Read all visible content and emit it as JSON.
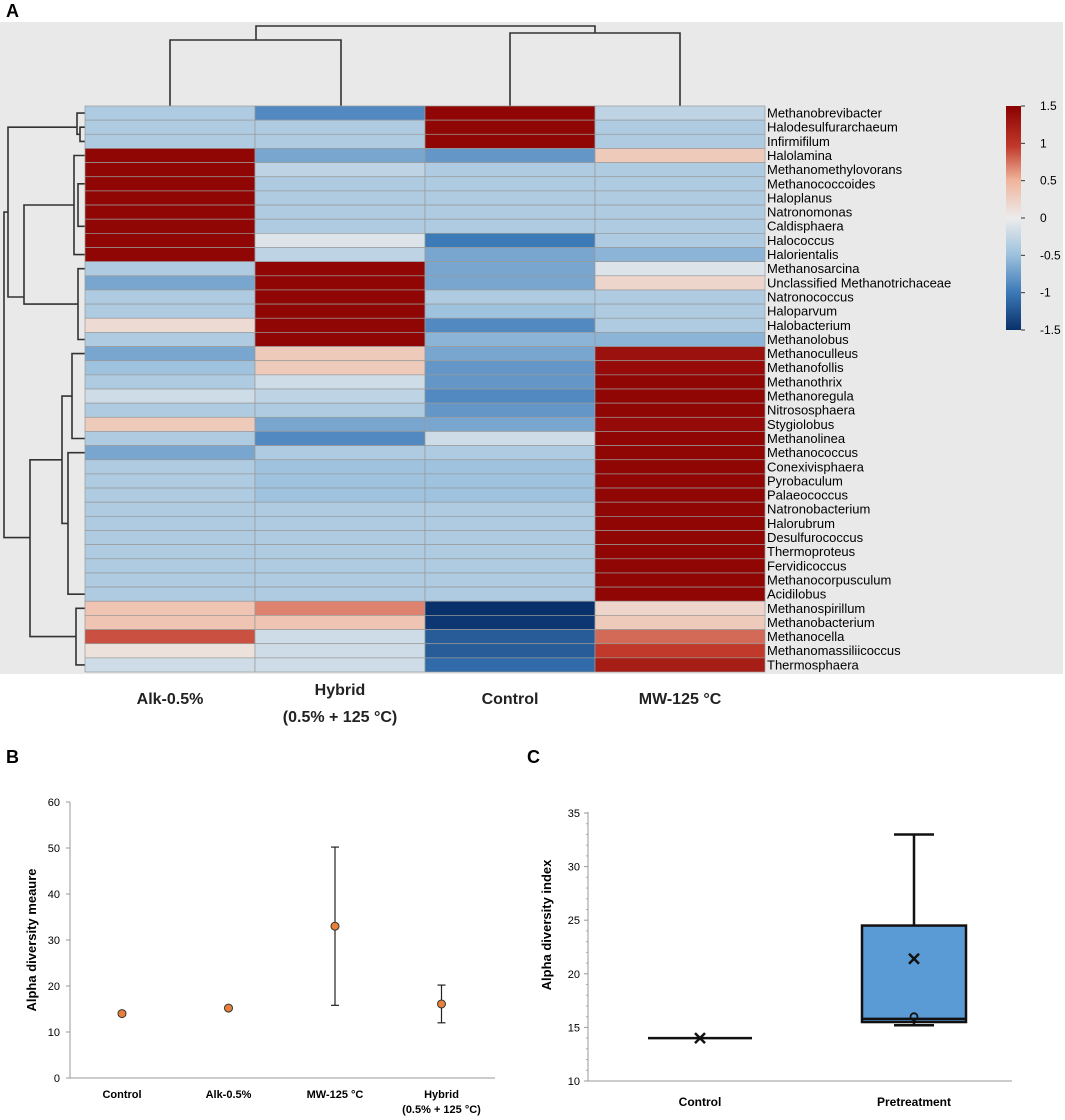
{
  "panel_labels": {
    "a": "A",
    "b": "B",
    "c": "C"
  },
  "colors": {
    "high": "#8b0000",
    "mid": "#ececec",
    "low": "#08306b",
    "heatmap_bg": "#e9e9e9",
    "marker": "#e8803a",
    "box_fill": "#5b9bd5"
  },
  "chart_data": [
    {
      "type": "heatmap",
      "title": "",
      "columns": [
        "Alk-0.5%",
        "Hybrid (0.5% + 125 °C)",
        "Control",
        "MW-125 °C"
      ],
      "column_labels": [
        [
          "Alk-0.5%"
        ],
        [
          "Hybrid",
          "(0.5% + 125 °C)"
        ],
        [
          "Control"
        ],
        [
          "MW-125 °C"
        ]
      ],
      "rows": [
        "Methanobrevibacter",
        "Halodesulfurarchaeum",
        "Infirmifilum",
        "Halolamina",
        "Methanomethylovorans",
        "Methanococcoides",
        "Haloplanus",
        "Natronomonas",
        "Caldisphaera",
        "Halococcus",
        "Halorientalis",
        "Methanosarcina",
        "Unclassified Methanotrichaceae",
        "Natronococcus",
        "Haloparvum",
        "Halobacterium",
        "Methanolobus",
        "Methanoculleus",
        "Methanofollis",
        "Methanothrix",
        "Methanoregula",
        "Nitrososphaera",
        "Stygiolobus",
        "Methanolinea",
        "Methanococcus",
        "Conexivisphaera",
        "Pyrobaculum",
        "Palaeococcus",
        "Natronobacterium",
        "Halorubrum",
        "Desulfurococcus",
        "Thermoproteus",
        "Fervidicoccus",
        "Methanocorpusculum",
        "Acidilobus",
        "Methanospirillum",
        "Methanobacterium",
        "Methanocella",
        "Methanomassiliicoccus",
        "Thermosphaera"
      ],
      "values": [
        [
          -0.4,
          -0.9,
          1.45,
          -0.3
        ],
        [
          -0.4,
          -0.4,
          1.45,
          -0.4
        ],
        [
          -0.4,
          -0.4,
          1.45,
          -0.4
        ],
        [
          1.45,
          -0.7,
          -0.8,
          0.3
        ],
        [
          1.45,
          -0.3,
          -0.4,
          -0.4
        ],
        [
          1.45,
          -0.4,
          -0.4,
          -0.4
        ],
        [
          1.45,
          -0.4,
          -0.4,
          -0.4
        ],
        [
          1.45,
          -0.4,
          -0.4,
          -0.4
        ],
        [
          1.45,
          -0.4,
          -0.4,
          -0.4
        ],
        [
          1.45,
          -0.1,
          -1.0,
          -0.4
        ],
        [
          1.45,
          -0.3,
          -0.7,
          -0.6
        ],
        [
          -0.4,
          1.45,
          -0.7,
          -0.1
        ],
        [
          -0.7,
          1.45,
          -0.7,
          0.2
        ],
        [
          -0.4,
          1.45,
          -0.4,
          -0.4
        ],
        [
          -0.4,
          1.45,
          -0.5,
          -0.4
        ],
        [
          0.15,
          1.45,
          -0.9,
          -0.4
        ],
        [
          -0.4,
          1.45,
          -0.6,
          -0.6
        ],
        [
          -0.7,
          0.3,
          -0.7,
          1.35
        ],
        [
          -0.5,
          0.3,
          -0.8,
          1.4
        ],
        [
          -0.4,
          -0.2,
          -0.8,
          1.45
        ],
        [
          -0.2,
          -0.3,
          -0.9,
          1.45
        ],
        [
          -0.4,
          -0.4,
          -0.8,
          1.45
        ],
        [
          0.3,
          -0.7,
          -0.7,
          1.4
        ],
        [
          -0.4,
          -0.9,
          -0.2,
          1.45
        ],
        [
          -0.7,
          -0.4,
          -0.4,
          1.45
        ],
        [
          -0.4,
          -0.5,
          -0.5,
          1.45
        ],
        [
          -0.4,
          -0.5,
          -0.5,
          1.45
        ],
        [
          -0.4,
          -0.5,
          -0.5,
          1.45
        ],
        [
          -0.4,
          -0.4,
          -0.4,
          1.45
        ],
        [
          -0.4,
          -0.4,
          -0.4,
          1.45
        ],
        [
          -0.4,
          -0.4,
          -0.4,
          1.45
        ],
        [
          -0.4,
          -0.4,
          -0.4,
          1.45
        ],
        [
          -0.4,
          -0.4,
          -0.4,
          1.45
        ],
        [
          -0.4,
          -0.4,
          -0.4,
          1.45
        ],
        [
          -0.4,
          -0.4,
          -0.4,
          1.45
        ],
        [
          0.35,
          0.7,
          -1.5,
          0.2
        ],
        [
          0.35,
          0.35,
          -1.45,
          0.3
        ],
        [
          0.9,
          -0.2,
          -1.2,
          0.8
        ],
        [
          0.1,
          -0.2,
          -1.2,
          1.0
        ],
        [
          -0.2,
          -0.2,
          -1.1,
          1.25
        ]
      ],
      "colorbar": {
        "min": -1.5,
        "max": 1.5,
        "ticks": [
          "1.5",
          "1",
          "0.5",
          "0",
          "-0.5",
          "-1",
          "-1.5"
        ]
      },
      "col_dendrogram": "((Alk-0.5%, Hybrid), (Control, MW-125 °C))",
      "row_dendrogram": "hierarchical clustering of genera"
    },
    {
      "type": "scatter",
      "subtype": "mean with error bars",
      "categories": [
        "Control",
        "Alk-0.5%",
        "MW-125 °C",
        "Hybrid"
      ],
      "category_sublabels": [
        "",
        "",
        "",
        "(0.5% + 125 °C)"
      ],
      "values": [
        14,
        15.2,
        33,
        16.1
      ],
      "error_low": [
        14,
        15.2,
        15.8,
        12
      ],
      "error_high": [
        14,
        15.2,
        50.2,
        20.2
      ],
      "ylabel": "Alpha diversity meaure",
      "xlabel": "",
      "ylim": [
        0,
        60
      ],
      "yticks": [
        "0",
        "10",
        "20",
        "30",
        "40",
        "50",
        "60"
      ]
    },
    {
      "type": "box",
      "categories": [
        "Control",
        "Pretreatment"
      ],
      "boxes": [
        {
          "name": "Control",
          "min": 14,
          "q1": 14,
          "median": 14,
          "q3": 14,
          "max": 14,
          "mean": 14,
          "outliers": []
        },
        {
          "name": "Pretreatment",
          "min": 15.2,
          "q1": 15.5,
          "median": 15.8,
          "q3": 24.5,
          "max": 33.0,
          "mean": 21.4,
          "points": [
            16
          ]
        }
      ],
      "ylabel": "Alpha diversity index",
      "xlabel": "",
      "ylim": [
        10,
        35
      ],
      "yticks": [
        "10",
        "15",
        "20",
        "25",
        "30",
        "35"
      ]
    }
  ]
}
